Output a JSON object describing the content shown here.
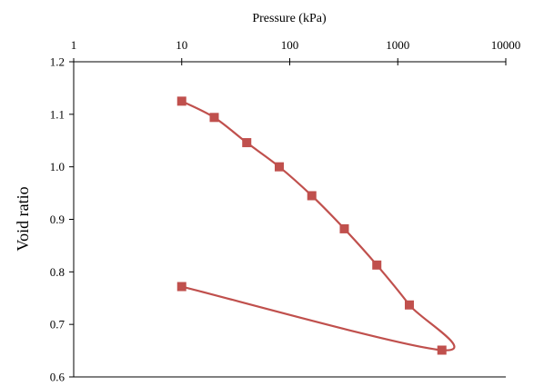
{
  "chart_data": {
    "type": "line",
    "xlabel": "Pressure (kPa)",
    "ylabel": "Void ratio",
    "x_scale": "log",
    "xlim": [
      1,
      10000
    ],
    "ylim": [
      0.6,
      1.2
    ],
    "x_ticks": [
      {
        "value": 1,
        "label": "1"
      },
      {
        "value": 10,
        "label": "10"
      },
      {
        "value": 100,
        "label": "100"
      },
      {
        "value": 1000,
        "label": "1000"
      },
      {
        "value": 10000,
        "label": "10000"
      }
    ],
    "y_ticks": [
      {
        "value": 0.6,
        "label": "0.6"
      },
      {
        "value": 0.7,
        "label": "0.7"
      },
      {
        "value": 0.8,
        "label": "0.8"
      },
      {
        "value": 0.9,
        "label": "0.9"
      },
      {
        "value": 1.0,
        "label": "1.0"
      },
      {
        "value": 1.1,
        "label": "1.1"
      },
      {
        "value": 1.2,
        "label": "1.2"
      }
    ],
    "grid": false,
    "x_axis_position": "top",
    "color": "#c0504d",
    "series": [
      {
        "points": [
          {
            "x": 10,
            "y": 1.125
          },
          {
            "x": 20,
            "y": 1.094
          },
          {
            "x": 40,
            "y": 1.046
          },
          {
            "x": 80,
            "y": 1.0
          },
          {
            "x": 160,
            "y": 0.945
          },
          {
            "x": 320,
            "y": 0.882
          },
          {
            "x": 640,
            "y": 0.813
          },
          {
            "x": 1280,
            "y": 0.737
          },
          {
            "x": 2560,
            "y": 0.651
          },
          {
            "x": 10,
            "y": 0.772
          }
        ]
      }
    ]
  }
}
